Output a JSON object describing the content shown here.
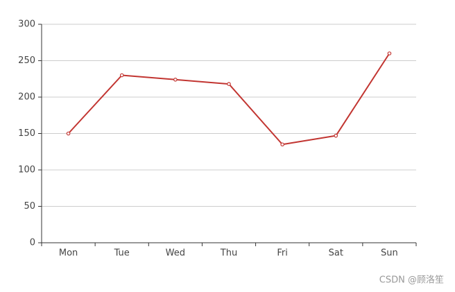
{
  "chart_data": {
    "type": "line",
    "categories": [
      "Mon",
      "Tue",
      "Wed",
      "Thu",
      "Fri",
      "Sat",
      "Sun"
    ],
    "values": [
      150,
      230,
      224,
      218,
      135,
      147,
      260
    ],
    "color": "#c23531",
    "ylim": [
      0,
      300
    ],
    "yticks": [
      0,
      50,
      100,
      150,
      200,
      250,
      300
    ],
    "grid": true
  },
  "watermark": "CSDN @顾洛笙"
}
